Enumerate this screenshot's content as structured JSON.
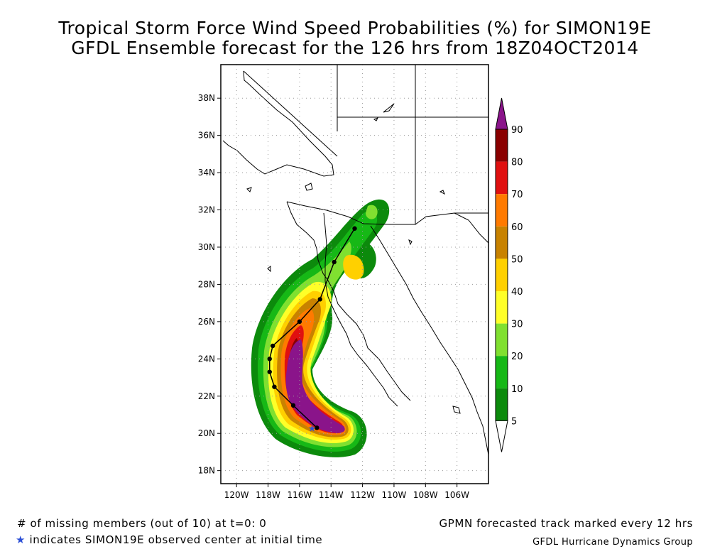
{
  "title": {
    "line1": "Tropical Storm Force Wind Speed Probabilities (%) for SIMON19E",
    "line2": "GFDL Ensemble forecast for the 126 hrs from 18Z04OCT2014"
  },
  "axes": {
    "lon_ticks": [
      "120W",
      "118W",
      "116W",
      "114W",
      "112W",
      "110W",
      "108W",
      "106W"
    ],
    "lat_ticks": [
      "18N",
      "20N",
      "22N",
      "24N",
      "26N",
      "28N",
      "30N",
      "32N",
      "34N",
      "36N",
      "38N"
    ]
  },
  "colorbar": {
    "labels": [
      "5",
      "10",
      "20",
      "30",
      "40",
      "50",
      "60",
      "70",
      "80",
      "90"
    ],
    "colors": [
      "#ffffff",
      "#0c8a0c",
      "#16b816",
      "#80e030",
      "#ffff28",
      "#ffd000",
      "#c88200",
      "#ff7a00",
      "#e01010",
      "#8a0000",
      "#8a148a"
    ]
  },
  "chart_data": {
    "type": "map",
    "title": "Tropical Storm Force Wind Speed Probabilities (%) for SIMON19E",
    "subtitle": "GFDL Ensemble forecast for the 126 hrs from 18Z04OCT2014",
    "lon_range": [
      -121,
      -104
    ],
    "lat_range": [
      17.3,
      39.8
    ],
    "forecast_track_12h": [
      {
        "lon": -114.9,
        "lat": 20.3
      },
      {
        "lon": -116.4,
        "lat": 21.5
      },
      {
        "lon": -117.6,
        "lat": 22.5
      },
      {
        "lon": -117.9,
        "lat": 23.3
      },
      {
        "lon": -117.9,
        "lat": 24.0
      },
      {
        "lon": -117.7,
        "lat": 24.7
      },
      {
        "lon": -116.0,
        "lat": 26.0
      },
      {
        "lon": -114.7,
        "lat": 27.2
      },
      {
        "lon": -113.8,
        "lat": 29.2
      },
      {
        "lon": -112.5,
        "lat": 31.0
      }
    ],
    "observed_center_initial": {
      "lon": -115.2,
      "lat": 20.3
    }
  },
  "footer": {
    "missing_members": "# of missing members (out of 10) at t=0: 0",
    "observed_star": "★",
    "observed_text": "indicates SIMON19E observed center at initial time",
    "track_note": "GPMN forecasted track marked every 12 hrs",
    "credit": "GFDL Hurricane Dynamics Group"
  }
}
